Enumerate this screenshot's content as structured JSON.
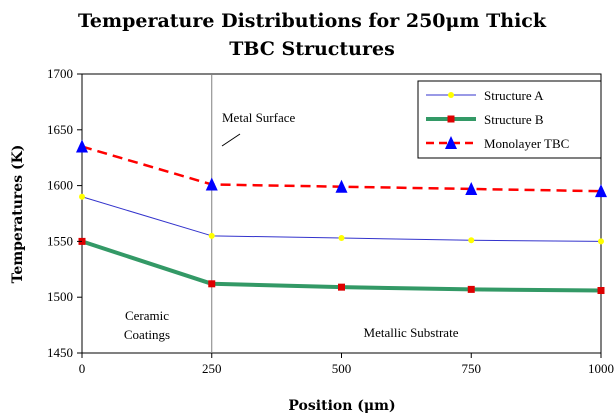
{
  "chart_data": {
    "type": "line",
    "title_lines": [
      "Temperature Distributions for 250μm Thick",
      "TBC Structures"
    ],
    "xlabel": "Position (μm)",
    "ylabel": "Temperatures (K)",
    "xlim": [
      0,
      1000
    ],
    "ylim": [
      1450,
      1700
    ],
    "x_ticks": [
      0,
      250,
      500,
      750,
      1000
    ],
    "y_ticks": [
      1450,
      1500,
      1550,
      1600,
      1650,
      1700
    ],
    "grid": false,
    "legend_position": "top-right",
    "series": [
      {
        "name": "Structure A",
        "color": "#3333cc",
        "marker_color": "#ffff00",
        "marker": "circle",
        "line_style": "solid",
        "points": [
          [
            0,
            1590
          ],
          [
            250,
            1555
          ],
          [
            500,
            1553
          ],
          [
            750,
            1551
          ],
          [
            1000,
            1550
          ]
        ],
        "markers_at": [
          [
            0,
            1590
          ],
          [
            250,
            1555
          ],
          [
            500,
            1553
          ],
          [
            750,
            1551
          ],
          [
            1000,
            1550
          ]
        ]
      },
      {
        "name": "Structure B",
        "color": "#339966",
        "marker_color": "#dd0000",
        "marker": "square",
        "line_style": "solid-thick",
        "points": [
          [
            0,
            1550
          ],
          [
            250,
            1512
          ],
          [
            500,
            1509
          ],
          [
            750,
            1507
          ],
          [
            1000,
            1506
          ]
        ],
        "markers_at": [
          [
            0,
            1550
          ],
          [
            250,
            1512
          ],
          [
            500,
            1509
          ],
          [
            750,
            1507
          ],
          [
            1000,
            1506
          ]
        ]
      },
      {
        "name": "Monolayer TBC",
        "color": "#ff0000",
        "marker_color": "#0000ff",
        "marker": "triangle",
        "line_style": "dashed",
        "points": [
          [
            0,
            1635
          ],
          [
            250,
            1601
          ],
          [
            500,
            1599
          ],
          [
            750,
            1597
          ],
          [
            1000,
            1595
          ]
        ],
        "markers_at": [
          [
            0,
            1635
          ],
          [
            250,
            1601
          ],
          [
            500,
            1599
          ],
          [
            750,
            1597
          ],
          [
            1000,
            1595
          ]
        ]
      }
    ],
    "reference_lines": [
      {
        "x": 250,
        "color": "#808080"
      }
    ],
    "annotations": [
      {
        "lines": [
          "Metal Surface"
        ]
      },
      {
        "lines": [
          "Ceramic",
          "Coatings"
        ]
      },
      {
        "lines": [
          "Metallic Substrate"
        ]
      }
    ]
  }
}
